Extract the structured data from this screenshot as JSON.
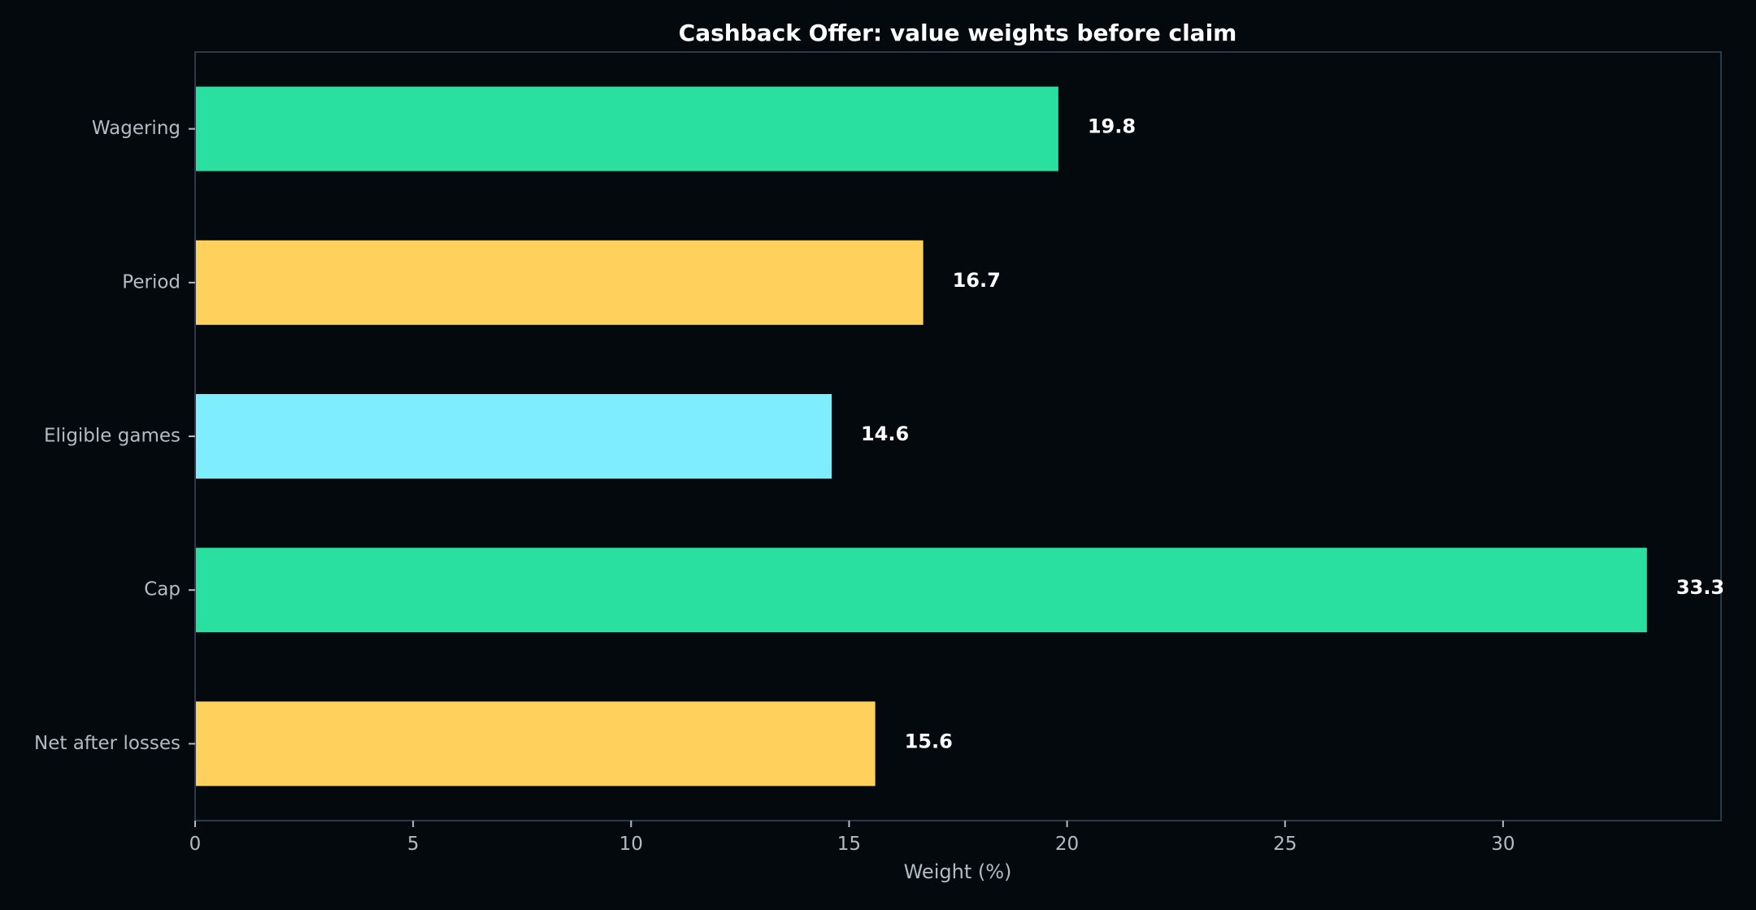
{
  "chart_data": {
    "type": "bar",
    "orientation": "horizontal",
    "title": "Cashback Offer: value weights before claim",
    "xlabel": "Weight (%)",
    "ylabel": "",
    "categories": [
      "Wagering",
      "Period",
      "Eligible games",
      "Cap",
      "Net after losses"
    ],
    "values": [
      19.8,
      16.7,
      14.6,
      33.3,
      15.6
    ],
    "data_labels": [
      "19.8",
      "16.7",
      "14.6",
      "33.3",
      "15.6"
    ],
    "bar_colors": [
      "#2ae0a0",
      "#ffd15c",
      "#7eedff",
      "#2ae0a0",
      "#ffd15c"
    ],
    "xlim": [
      0,
      35
    ],
    "xticks": [
      0,
      5,
      10,
      15,
      20,
      25,
      30
    ],
    "xtick_labels": [
      "0",
      "5",
      "10",
      "15",
      "20",
      "25",
      "30"
    ],
    "grid": false,
    "legend": "none",
    "background_color": "#03090c",
    "axis_color": "#2b3a4a",
    "text_color": "#b3bcc4"
  }
}
